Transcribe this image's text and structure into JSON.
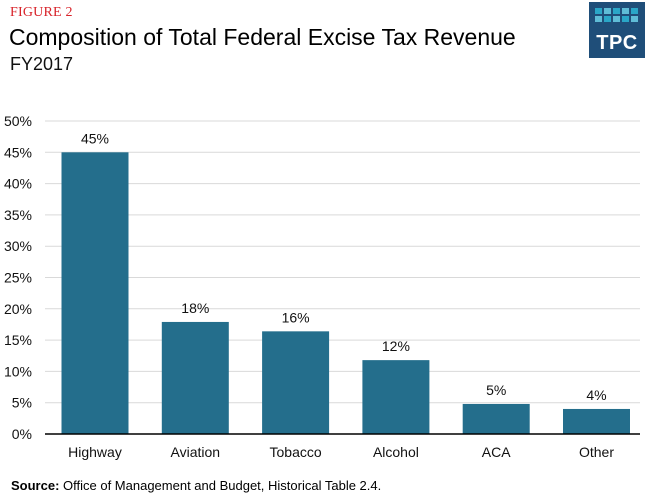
{
  "header": {
    "figure_label": "FIGURE 2",
    "title": "Composition of Total Federal Excise Tax Revenue",
    "subtitle": "FY2017"
  },
  "logo": {
    "text": "TPC",
    "background": "#1f4e79",
    "tile_colors": [
      "#2aa6c7",
      "#5fbcd6",
      "#2aa6c7",
      "#5fbcd6",
      "#2aa6c7",
      "#5fbcd6",
      "#2aa6c7",
      "#5fbcd6",
      "#2aa6c7",
      "#5fbcd6"
    ]
  },
  "colors": {
    "bar": "#246e8c",
    "gridline": "#d9d9d9",
    "axis": "#000000",
    "figure_label": "#d8232a"
  },
  "chart_data": {
    "type": "bar",
    "title": "Composition of Total Federal Excise Tax Revenue",
    "subtitle": "FY2017",
    "xlabel": "",
    "ylabel": "",
    "categories": [
      "Highway",
      "Aviation",
      "Tobacco",
      "Alcohol",
      "ACA",
      "Other"
    ],
    "values": [
      45,
      17.9,
      16.4,
      11.8,
      4.8,
      4.0
    ],
    "data_labels": [
      "45%",
      "18%",
      "16%",
      "12%",
      "5%",
      "4%"
    ],
    "ylim": [
      0,
      50
    ],
    "yticks": [
      0,
      5,
      10,
      15,
      20,
      25,
      30,
      35,
      40,
      45,
      50
    ],
    "ytick_labels": [
      "0%",
      "5%",
      "10%",
      "15%",
      "20%",
      "25%",
      "30%",
      "35%",
      "40%",
      "45%",
      "50%"
    ],
    "grid": true,
    "legend": "none"
  },
  "source": {
    "label": "Source:",
    "text": " Office of Management and Budget, Historical Table 2.4."
  }
}
